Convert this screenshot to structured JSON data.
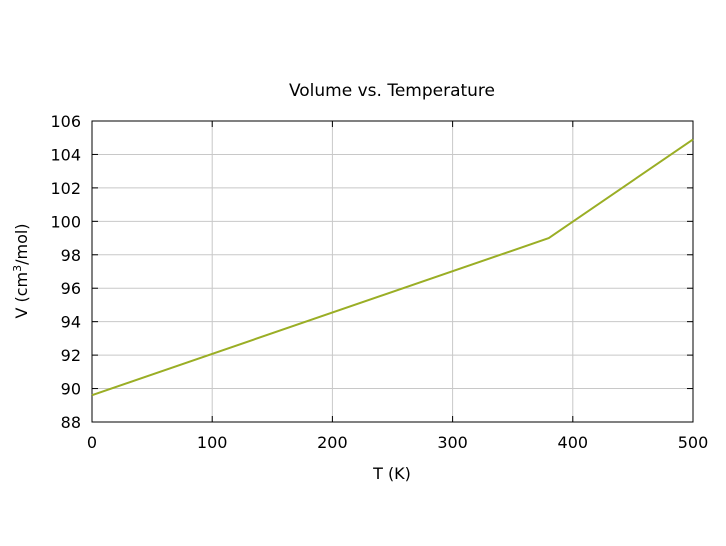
{
  "chart_data": {
    "type": "line",
    "title": "Volume vs. Temperature",
    "xlabel": "T (K)",
    "ylabel_main": "V (cm",
    "ylabel_sup": "3",
    "ylabel_tail": "/mol)",
    "xlim": [
      0,
      500
    ],
    "ylim": [
      88,
      106
    ],
    "xticks": [
      0,
      100,
      200,
      300,
      400,
      500
    ],
    "yticks": [
      88,
      90,
      92,
      94,
      96,
      98,
      100,
      102,
      104,
      106
    ],
    "grid": true,
    "line_color": "#9aae25",
    "series": [
      {
        "x": [
          0,
          380,
          500
        ],
        "y": [
          89.6,
          99.0,
          104.9
        ]
      }
    ]
  }
}
